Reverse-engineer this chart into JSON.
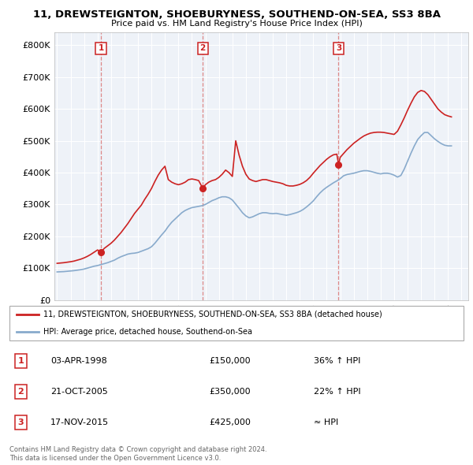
{
  "title": "11, DREWSTEIGNTON, SHOEBURYNESS, SOUTHEND-ON-SEA, SS3 8BA",
  "subtitle": "Price paid vs. HM Land Registry's House Price Index (HPI)",
  "ylabel_ticks": [
    "£0",
    "£100K",
    "£200K",
    "£300K",
    "£400K",
    "£500K",
    "£600K",
    "£700K",
    "£800K"
  ],
  "ytick_values": [
    0,
    100000,
    200000,
    300000,
    400000,
    500000,
    600000,
    700000,
    800000
  ],
  "ylim": [
    0,
    840000
  ],
  "xlim_start": 1994.8,
  "xlim_end": 2025.5,
  "sale_events": [
    {
      "num": 1,
      "year": 1998.25,
      "price": 150000,
      "date": "03-APR-1998",
      "price_str": "£150,000",
      "hpi_str": "36% ↑ HPI"
    },
    {
      "num": 2,
      "year": 2005.8,
      "price": 350000,
      "date": "21-OCT-2005",
      "price_str": "£350,000",
      "hpi_str": "22% ↑ HPI"
    },
    {
      "num": 3,
      "year": 2015.88,
      "price": 425000,
      "date": "17-NOV-2015",
      "price_str": "£425,000",
      "hpi_str": "≈ HPI"
    }
  ],
  "legend_entries": [
    "11, DREWSTEIGNTON, SHOEBURYNESS, SOUTHEND-ON-SEA, SS3 8BA (detached house)",
    "HPI: Average price, detached house, Southend-on-Sea"
  ],
  "footer_line1": "Contains HM Land Registry data © Crown copyright and database right 2024.",
  "footer_line2": "This data is licensed under the Open Government Licence v3.0.",
  "red_color": "#cc2222",
  "blue_color": "#88aacc",
  "vline_color": "#dd8888",
  "chart_bg": "#eef2f8",
  "hpi_data_x": [
    1995.0,
    1995.25,
    1995.5,
    1995.75,
    1996.0,
    1996.25,
    1996.5,
    1996.75,
    1997.0,
    1997.25,
    1997.5,
    1997.75,
    1998.0,
    1998.25,
    1998.5,
    1998.75,
    1999.0,
    1999.25,
    1999.5,
    1999.75,
    2000.0,
    2000.25,
    2000.5,
    2000.75,
    2001.0,
    2001.25,
    2001.5,
    2001.75,
    2002.0,
    2002.25,
    2002.5,
    2002.75,
    2003.0,
    2003.25,
    2003.5,
    2003.75,
    2004.0,
    2004.25,
    2004.5,
    2004.75,
    2005.0,
    2005.25,
    2005.5,
    2005.75,
    2006.0,
    2006.25,
    2006.5,
    2006.75,
    2007.0,
    2007.25,
    2007.5,
    2007.75,
    2008.0,
    2008.25,
    2008.5,
    2008.75,
    2009.0,
    2009.25,
    2009.5,
    2009.75,
    2010.0,
    2010.25,
    2010.5,
    2010.75,
    2011.0,
    2011.25,
    2011.5,
    2011.75,
    2012.0,
    2012.25,
    2012.5,
    2012.75,
    2013.0,
    2013.25,
    2013.5,
    2013.75,
    2014.0,
    2014.25,
    2014.5,
    2014.75,
    2015.0,
    2015.25,
    2015.5,
    2015.75,
    2016.0,
    2016.25,
    2016.5,
    2016.75,
    2017.0,
    2017.25,
    2017.5,
    2017.75,
    2018.0,
    2018.25,
    2018.5,
    2018.75,
    2019.0,
    2019.25,
    2019.5,
    2019.75,
    2020.0,
    2020.25,
    2020.5,
    2020.75,
    2021.0,
    2021.25,
    2021.5,
    2021.75,
    2022.0,
    2022.25,
    2022.5,
    2022.75,
    2023.0,
    2023.25,
    2023.5,
    2023.75,
    2024.0,
    2024.25
  ],
  "hpi_data_y": [
    88000,
    88500,
    89000,
    90000,
    91000,
    92000,
    93500,
    95000,
    97000,
    100000,
    103000,
    106000,
    108000,
    111000,
    114000,
    117000,
    121000,
    125000,
    131000,
    136000,
    140000,
    144000,
    146000,
    147000,
    149000,
    153000,
    157000,
    161000,
    167000,
    178000,
    191000,
    204000,
    216000,
    231000,
    244000,
    254000,
    264000,
    274000,
    281000,
    286000,
    290000,
    292000,
    294000,
    296000,
    300000,
    306000,
    312000,
    316000,
    321000,
    324000,
    324000,
    321000,
    314000,
    301000,
    288000,
    274000,
    264000,
    258000,
    261000,
    266000,
    271000,
    274000,
    274000,
    272000,
    271000,
    272000,
    270000,
    268000,
    266000,
    268000,
    271000,
    274000,
    278000,
    284000,
    292000,
    301000,
    311000,
    324000,
    336000,
    346000,
    354000,
    361000,
    368000,
    374000,
    381000,
    390000,
    394000,
    396000,
    398000,
    401000,
    404000,
    406000,
    406000,
    404000,
    401000,
    398000,
    396000,
    398000,
    398000,
    396000,
    392000,
    386000,
    391000,
    411000,
    436000,
    461000,
    484000,
    504000,
    516000,
    526000,
    526000,
    516000,
    506000,
    498000,
    491000,
    486000,
    484000,
    484000
  ],
  "red_data_x": [
    1995.0,
    1995.25,
    1995.5,
    1995.75,
    1996.0,
    1996.25,
    1996.5,
    1996.75,
    1997.0,
    1997.25,
    1997.5,
    1997.75,
    1998.0,
    1998.25,
    1998.5,
    1998.75,
    1999.0,
    1999.25,
    1999.5,
    1999.75,
    2000.0,
    2000.25,
    2000.5,
    2000.75,
    2001.0,
    2001.25,
    2001.5,
    2001.75,
    2002.0,
    2002.25,
    2002.5,
    2002.75,
    2003.0,
    2003.25,
    2003.5,
    2003.75,
    2004.0,
    2004.25,
    2004.5,
    2004.75,
    2005.0,
    2005.25,
    2005.5,
    2005.75,
    2005.8,
    2006.0,
    2006.25,
    2006.5,
    2006.75,
    2007.0,
    2007.25,
    2007.5,
    2007.75,
    2008.0,
    2008.25,
    2008.5,
    2008.75,
    2009.0,
    2009.25,
    2009.5,
    2009.75,
    2010.0,
    2010.25,
    2010.5,
    2010.75,
    2011.0,
    2011.25,
    2011.5,
    2011.75,
    2012.0,
    2012.25,
    2012.5,
    2012.75,
    2013.0,
    2013.25,
    2013.5,
    2013.75,
    2014.0,
    2014.25,
    2014.5,
    2014.75,
    2015.0,
    2015.25,
    2015.5,
    2015.75,
    2015.88,
    2016.0,
    2016.25,
    2016.5,
    2016.75,
    2017.0,
    2017.25,
    2017.5,
    2017.75,
    2018.0,
    2018.25,
    2018.5,
    2018.75,
    2019.0,
    2019.25,
    2019.5,
    2019.75,
    2020.0,
    2020.25,
    2020.5,
    2020.75,
    2021.0,
    2021.25,
    2021.5,
    2021.75,
    2022.0,
    2022.25,
    2022.5,
    2022.75,
    2023.0,
    2023.25,
    2023.5,
    2023.75,
    2024.0,
    2024.25
  ],
  "red_data_y": [
    115000,
    116000,
    117000,
    118500,
    120000,
    122000,
    125000,
    128000,
    132000,
    137000,
    143000,
    150000,
    157000,
    150000,
    162000,
    170000,
    178000,
    188000,
    200000,
    212000,
    226000,
    240000,
    256000,
    272000,
    285000,
    298000,
    316000,
    332000,
    350000,
    372000,
    392000,
    408000,
    420000,
    378000,
    370000,
    365000,
    362000,
    365000,
    370000,
    378000,
    380000,
    378000,
    375000,
    355000,
    350000,
    362000,
    370000,
    375000,
    378000,
    385000,
    395000,
    408000,
    400000,
    388000,
    500000,
    455000,
    420000,
    395000,
    380000,
    375000,
    372000,
    375000,
    378000,
    378000,
    375000,
    372000,
    370000,
    368000,
    365000,
    360000,
    358000,
    358000,
    360000,
    363000,
    368000,
    375000,
    385000,
    398000,
    410000,
    422000,
    432000,
    442000,
    450000,
    456000,
    458000,
    425000,
    448000,
    460000,
    472000,
    482000,
    492000,
    500000,
    508000,
    515000,
    520000,
    524000,
    526000,
    527000,
    527000,
    526000,
    524000,
    522000,
    520000,
    530000,
    550000,
    572000,
    596000,
    618000,
    638000,
    652000,
    658000,
    655000,
    645000,
    630000,
    615000,
    600000,
    590000,
    582000,
    578000,
    575000
  ]
}
